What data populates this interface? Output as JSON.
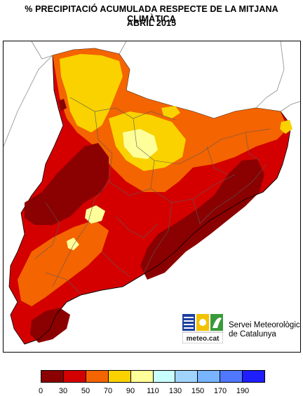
{
  "title": {
    "line1": "% PRECIPITACIÓ ACUMULADA RESPECTE DE LA MITJANA CLIMÀTICA",
    "line2": "ABRIL 2015"
  },
  "logo": {
    "brand": "meteo.cat",
    "org_line1": "Servei Meteorològic",
    "org_line2": "de Catalunya"
  },
  "legend": {
    "colors": [
      "#8b0000",
      "#d40000",
      "#f46400",
      "#f9d200",
      "#ffff99",
      "#c8ffff",
      "#a0d4ff",
      "#78b4ff",
      "#5078ff",
      "#1e1eff"
    ],
    "ticks": [
      "0",
      "30",
      "50",
      "70",
      "90",
      "110",
      "130",
      "150",
      "170",
      "190"
    ]
  }
}
